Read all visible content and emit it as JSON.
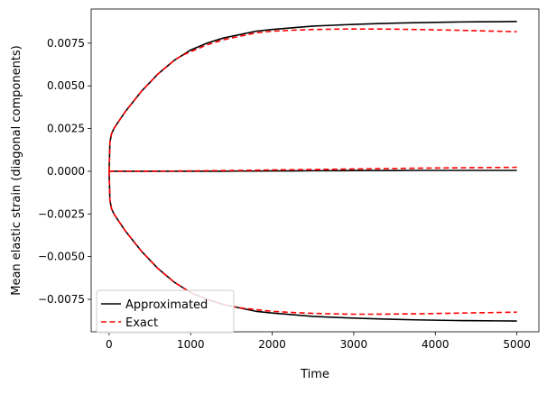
{
  "chart_data": {
    "type": "line",
    "title": "",
    "xlabel": "Time",
    "ylabel": "Mean elastic strain (diagonal components)",
    "xlim": [
      -220,
      5270
    ],
    "ylim": [
      -0.0094,
      0.0095
    ],
    "xticks": [
      0,
      1000,
      2000,
      3000,
      4000,
      5000
    ],
    "xtick_labels": [
      "0",
      "1000",
      "2000",
      "3000",
      "4000",
      "5000"
    ],
    "yticks": [
      -0.0075,
      -0.005,
      -0.0025,
      0.0,
      0.0025,
      0.005,
      0.0075
    ],
    "ytick_labels": [
      "−0.0075",
      "−0.0050",
      "−0.0025",
      "0.0000",
      "0.0025",
      "0.0050",
      "0.0075"
    ],
    "grid": false,
    "legend_position": "lower-left",
    "legend": [
      {
        "label": "Approximated",
        "color": "#000000",
        "style": "solid"
      },
      {
        "label": "Exact",
        "color": "#ff0000",
        "style": "dashed"
      }
    ],
    "x": [
      0,
      10,
      30,
      60,
      100,
      200,
      300,
      400,
      500,
      600,
      700,
      800,
      900,
      1000,
      1200,
      1400,
      1600,
      1800,
      2000,
      2250,
      2500,
      2750,
      3000,
      3250,
      3500,
      3750,
      4000,
      4250,
      4500,
      4750,
      5000
    ],
    "series": [
      {
        "name": "Approximated (upper)",
        "legend_ref": "Approximated",
        "color": "#000000",
        "dash": "",
        "values": [
          0.0,
          0.0017,
          0.0022,
          0.0025,
          0.0028,
          0.0035,
          0.0041,
          0.0047,
          0.0052,
          0.0057,
          0.0061,
          0.0065,
          0.0068,
          0.0071,
          0.0075,
          0.0078,
          0.008,
          0.0082,
          0.0083,
          0.0084,
          0.0085,
          0.00855,
          0.0086,
          0.00864,
          0.00867,
          0.0087,
          0.00872,
          0.00874,
          0.00875,
          0.00876,
          0.00877
        ]
      },
      {
        "name": "Approximated (middle)",
        "legend_ref": "Approximated",
        "color": "#000000",
        "dash": "",
        "values": [
          0.0,
          0.0,
          0.0,
          0.0,
          0.0,
          0.0,
          0.0,
          0.0,
          0.0,
          0.0,
          0.0,
          0.0,
          0.0,
          0.0,
          0.0,
          0.0,
          1e-05,
          1e-05,
          2e-05,
          2e-05,
          3e-05,
          3e-05,
          4e-05,
          4e-05,
          4e-05,
          5e-05,
          5e-05,
          5e-05,
          5e-05,
          5e-05,
          5e-05
        ]
      },
      {
        "name": "Approximated (lower)",
        "legend_ref": "Approximated",
        "color": "#000000",
        "dash": "",
        "values": [
          0.0,
          -0.0017,
          -0.0022,
          -0.0025,
          -0.0028,
          -0.0035,
          -0.0041,
          -0.0047,
          -0.0052,
          -0.0057,
          -0.0061,
          -0.0065,
          -0.0068,
          -0.0071,
          -0.0075,
          -0.0078,
          -0.008,
          -0.0082,
          -0.0083,
          -0.0084,
          -0.0085,
          -0.00855,
          -0.0086,
          -0.00864,
          -0.00867,
          -0.0087,
          -0.00872,
          -0.00874,
          -0.00875,
          -0.00876,
          -0.00877
        ]
      },
      {
        "name": "Exact (upper)",
        "legend_ref": "Exact",
        "color": "#ff0000",
        "dash": "6,3.5",
        "values": [
          0.0,
          0.0017,
          0.0022,
          0.0025,
          0.0028,
          0.0035,
          0.0041,
          0.0047,
          0.0052,
          0.0057,
          0.0061,
          0.0065,
          0.0068,
          0.007,
          0.0074,
          0.0077,
          0.0079,
          0.0081,
          0.0082,
          0.00826,
          0.0083,
          0.00832,
          0.00833,
          0.00833,
          0.00832,
          0.0083,
          0.00828,
          0.00826,
          0.00823,
          0.0082,
          0.00817
        ]
      },
      {
        "name": "Exact (middle)",
        "legend_ref": "Exact",
        "color": "#ff0000",
        "dash": "6,3.5",
        "values": [
          0.0,
          0.0,
          0.0,
          0.0,
          0.0,
          0.0,
          0.0,
          0.0,
          0.0,
          1e-05,
          1e-05,
          1e-05,
          2e-05,
          2e-05,
          3e-05,
          4e-05,
          5e-05,
          6e-05,
          8e-05,
          9e-05,
          0.0001,
          0.00012,
          0.00013,
          0.00015,
          0.00016,
          0.00018,
          0.00019,
          0.0002,
          0.00021,
          0.00022,
          0.00023
        ]
      },
      {
        "name": "Exact (lower)",
        "legend_ref": "Exact",
        "color": "#ff0000",
        "dash": "6,3.5",
        "values": [
          0.0,
          -0.0017,
          -0.0022,
          -0.0025,
          -0.0028,
          -0.0035,
          -0.0041,
          -0.0047,
          -0.0052,
          -0.0057,
          -0.0061,
          -0.0065,
          -0.0068,
          -0.0071,
          -0.0075,
          -0.0078,
          -0.008,
          -0.0081,
          -0.0082,
          -0.00827,
          -0.00832,
          -0.00835,
          -0.00837,
          -0.00837,
          -0.00836,
          -0.00835,
          -0.00833,
          -0.00831,
          -0.00829,
          -0.00827,
          -0.00825
        ]
      }
    ]
  }
}
